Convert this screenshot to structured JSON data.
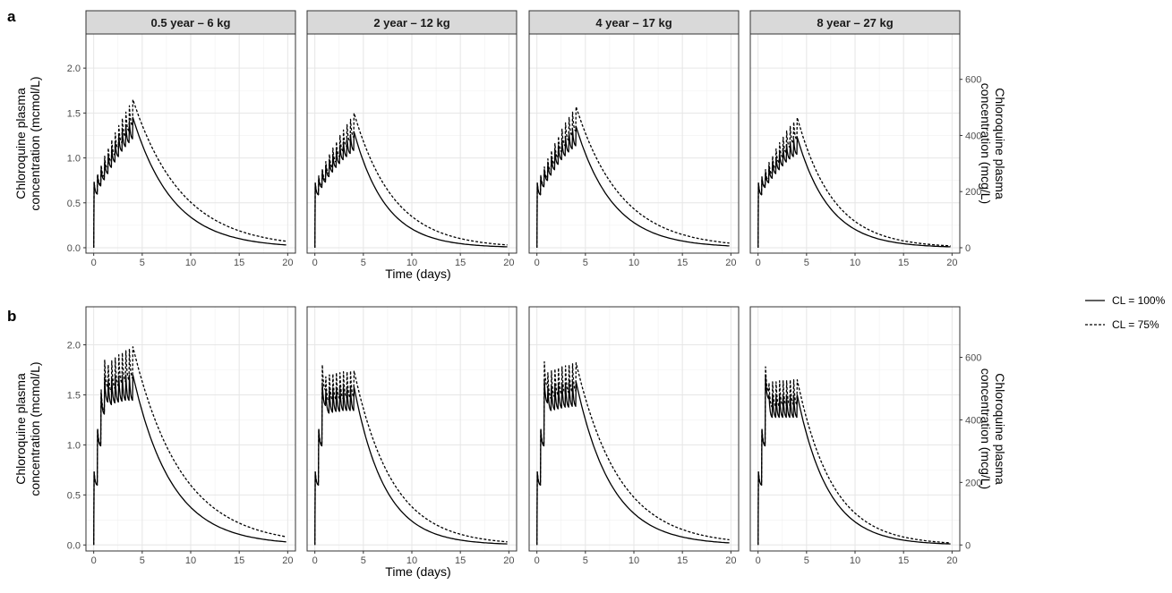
{
  "chart_data": {
    "type": "line",
    "row_labels": [
      "a",
      "b"
    ],
    "facets": [
      "0.5 year – 6 kg",
      "2 year – 12 kg",
      "4 year – 17 kg",
      "8 year – 27 kg"
    ],
    "xlabel": "Time (days)",
    "ylabel_left": [
      "Chloroquine plasma",
      "concentration (mcmol/L)"
    ],
    "ylabel_right": [
      "Chloroquine plasma",
      "concentration (mcg/L)"
    ],
    "xlim": [
      -0.8,
      20.8
    ],
    "ylim": [
      -0.06,
      2.38
    ],
    "x_ticks": [
      0,
      5,
      10,
      15,
      20
    ],
    "y_ticks_left": [
      0.0,
      0.5,
      1.0,
      1.5,
      2.0
    ],
    "y_ticks_left_labels": [
      "0.0",
      "0.5",
      "1.0",
      "1.5",
      "2.0"
    ],
    "y_ticks_right": [
      0,
      200,
      400,
      600
    ],
    "mcg_per_mcmol": 320,
    "grid": true,
    "legend": {
      "position": "right",
      "entries": [
        {
          "label": "CL = 100%",
          "style": "solid"
        },
        {
          "label": "CL = 75%",
          "style": "dashed"
        }
      ]
    },
    "panels": [
      {
        "row": "a",
        "facet": "0.5 year – 6 kg",
        "series": [
          {
            "name": "CL = 100%",
            "first_peak": 0.73,
            "dose_peaks": [
              0.73,
              0.8,
              0.88,
              0.96,
              1.04,
              1.11,
              1.18,
              1.25,
              1.31,
              1.36,
              1.41,
              1.45
            ],
            "end_value": 0.03
          },
          {
            "name": "CL = 75%",
            "first_peak": 0.73,
            "dose_peaks": [
              0.73,
              0.82,
              0.92,
              1.02,
              1.11,
              1.2,
              1.28,
              1.36,
              1.44,
              1.51,
              1.58,
              1.65
            ],
            "end_value": 0.07
          }
        ]
      },
      {
        "row": "a",
        "facet": "2 year – 12 kg",
        "series": [
          {
            "name": "CL = 100%",
            "first_peak": 0.72,
            "dose_peaks": [
              0.72,
              0.78,
              0.85,
              0.92,
              0.98,
              1.04,
              1.09,
              1.14,
              1.18,
              1.22,
              1.26,
              1.29
            ],
            "end_value": 0.01
          },
          {
            "name": "CL = 75%",
            "first_peak": 0.72,
            "dose_peaks": [
              0.72,
              0.8,
              0.88,
              0.96,
              1.04,
              1.11,
              1.18,
              1.25,
              1.31,
              1.37,
              1.43,
              1.5
            ],
            "end_value": 0.03
          }
        ]
      },
      {
        "row": "a",
        "facet": "4 year – 17 kg",
        "series": [
          {
            "name": "CL = 100%",
            "first_peak": 0.72,
            "dose_peaks": [
              0.72,
              0.79,
              0.87,
              0.94,
              1.01,
              1.08,
              1.14,
              1.19,
              1.24,
              1.28,
              1.32,
              1.35
            ],
            "end_value": 0.02
          },
          {
            "name": "CL = 75%",
            "first_peak": 0.72,
            "dose_peaks": [
              0.72,
              0.81,
              0.9,
              0.99,
              1.08,
              1.16,
              1.24,
              1.32,
              1.39,
              1.45,
              1.51,
              1.57
            ],
            "end_value": 0.05
          }
        ]
      },
      {
        "row": "a",
        "facet": "8 year – 27 kg",
        "series": [
          {
            "name": "CL = 100%",
            "first_peak": 0.72,
            "dose_peaks": [
              0.72,
              0.78,
              0.84,
              0.9,
              0.96,
              1.01,
              1.06,
              1.11,
              1.15,
              1.18,
              1.21,
              1.23
            ],
            "end_value": 0.01
          },
          {
            "name": "CL = 75%",
            "first_peak": 0.72,
            "dose_peaks": [
              0.72,
              0.79,
              0.87,
              0.95,
              1.02,
              1.1,
              1.17,
              1.23,
              1.3,
              1.35,
              1.4,
              1.45
            ],
            "end_value": 0.02
          }
        ]
      },
      {
        "row": "b",
        "facet": "0.5 year – 6 kg",
        "series": [
          {
            "name": "CL = 100%",
            "first_peak": 0.73,
            "dose_peaks": [
              0.73,
              1.15,
              1.52,
              1.68,
              1.65,
              1.67,
              1.68,
              1.69,
              1.7,
              1.7,
              1.7,
              1.7
            ],
            "end_value": 0.03
          },
          {
            "name": "CL = 75%",
            "first_peak": 0.73,
            "dose_peaks": [
              0.73,
              1.16,
              1.55,
              1.85,
              1.8,
              1.84,
              1.87,
              1.9,
              1.92,
              1.94,
              1.96,
              1.98
            ],
            "end_value": 0.08
          }
        ]
      },
      {
        "row": "b",
        "facet": "2 year – 12 kg",
        "series": [
          {
            "name": "CL = 100%",
            "first_peak": 0.73,
            "dose_peaks": [
              0.73,
              1.15,
              1.62,
              1.55,
              1.56,
              1.57,
              1.57,
              1.58,
              1.58,
              1.58,
              1.58,
              1.58
            ],
            "end_value": 0.01
          },
          {
            "name": "CL = 75%",
            "first_peak": 0.73,
            "dose_peaks": [
              0.73,
              1.16,
              1.8,
              1.68,
              1.7,
              1.71,
              1.72,
              1.72,
              1.73,
              1.73,
              1.74,
              1.74
            ],
            "end_value": 0.03
          }
        ]
      },
      {
        "row": "b",
        "facet": "4 year – 17 kg",
        "series": [
          {
            "name": "CL = 100%",
            "first_peak": 0.73,
            "dose_peaks": [
              0.73,
              1.15,
              1.65,
              1.58,
              1.59,
              1.6,
              1.61,
              1.62,
              1.62,
              1.63,
              1.63,
              1.63
            ],
            "end_value": 0.02
          },
          {
            "name": "CL = 75%",
            "first_peak": 0.73,
            "dose_peaks": [
              0.73,
              1.16,
              1.83,
              1.72,
              1.74,
              1.76,
              1.77,
              1.78,
              1.79,
              1.8,
              1.81,
              1.82
            ],
            "end_value": 0.05
          }
        ]
      },
      {
        "row": "b",
        "facet": "8 year – 27 kg",
        "series": [
          {
            "name": "CL = 100%",
            "first_peak": 0.73,
            "dose_peaks": [
              0.73,
              1.15,
              1.7,
              1.5,
              1.5,
              1.5,
              1.5,
              1.5,
              1.5,
              1.5,
              1.5,
              1.5
            ],
            "end_value": 0.01
          },
          {
            "name": "CL = 75%",
            "first_peak": 0.73,
            "dose_peaks": [
              0.73,
              1.16,
              1.78,
              1.62,
              1.63,
              1.63,
              1.64,
              1.64,
              1.64,
              1.65,
              1.65,
              1.65
            ],
            "end_value": 0.02
          }
        ]
      }
    ]
  }
}
